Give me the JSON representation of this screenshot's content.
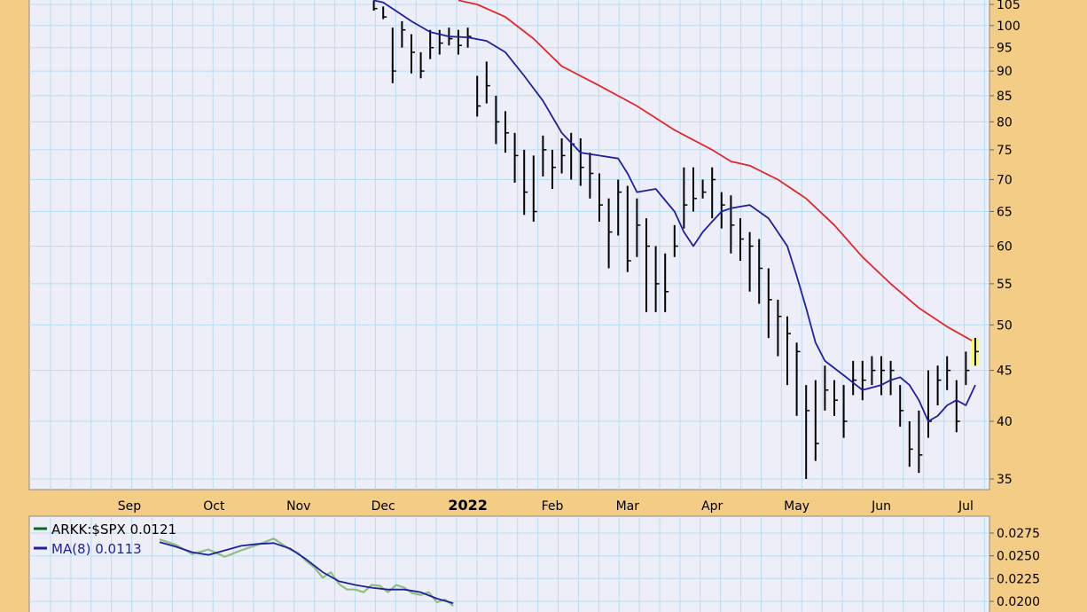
{
  "chart_data": [
    {
      "type": "line",
      "subtype": "ohlc-bars",
      "scale": "log",
      "ylim": [
        34,
        106
      ],
      "y_ticks": [
        35,
        40,
        45,
        50,
        55,
        60,
        65,
        70,
        75,
        80,
        85,
        90,
        95,
        100,
        105
      ],
      "x_ticks": [
        {
          "label": "Sep",
          "pos": 0.1,
          "bold": false
        },
        {
          "label": "Oct",
          "pos": 0.19,
          "bold": false
        },
        {
          "label": "Nov",
          "pos": 0.28,
          "bold": false
        },
        {
          "label": "Dec",
          "pos": 0.37,
          "bold": false
        },
        {
          "label": "2022",
          "pos": 0.46,
          "bold": true
        },
        {
          "label": "Feb",
          "pos": 0.55,
          "bold": false
        },
        {
          "label": "Mar",
          "pos": 0.63,
          "bold": false
        },
        {
          "label": "Apr",
          "pos": 0.72,
          "bold": false
        },
        {
          "label": "May",
          "pos": 0.81,
          "bold": false
        },
        {
          "label": "Jun",
          "pos": 0.9,
          "bold": false
        },
        {
          "label": "Jul",
          "pos": 0.99,
          "bold": false
        }
      ],
      "grid": true,
      "colors": {
        "price": "#000000",
        "ma_short": "#1f1f9f",
        "ma_long": "#e0282d",
        "last_bar_highlight": "#ffff50",
        "background": "#eeeef8",
        "grid": "#a8d8ec"
      },
      "series": [
        {
          "role": "ma_long",
          "x": [
            0.45,
            0.47,
            0.5,
            0.53,
            0.56,
            0.6,
            0.64,
            0.68,
            0.72,
            0.74,
            0.76,
            0.79,
            0.82,
            0.85,
            0.88,
            0.91,
            0.94,
            0.97,
            1.0
          ],
          "values": [
            106,
            105,
            102,
            97,
            91,
            87,
            83,
            78.5,
            75,
            73,
            72.3,
            70,
            67,
            63,
            58.5,
            55,
            52,
            49.8,
            48
          ]
        },
        {
          "role": "ma_short",
          "x": [
            0.36,
            0.37,
            0.38,
            0.4,
            0.42,
            0.44,
            0.46,
            0.48,
            0.5,
            0.52,
            0.54,
            0.56,
            0.58,
            0.6,
            0.62,
            0.63,
            0.64,
            0.66,
            0.68,
            0.69,
            0.7,
            0.71,
            0.72,
            0.73,
            0.74,
            0.76,
            0.78,
            0.8,
            0.81,
            0.82,
            0.83,
            0.84,
            0.86,
            0.88,
            0.9,
            0.91,
            0.92,
            0.93,
            0.94,
            0.95,
            0.96,
            0.97,
            0.98,
            0.99,
            1.0
          ],
          "values": [
            106,
            105.5,
            104,
            101,
            98.5,
            97.5,
            97.3,
            96.5,
            94,
            89,
            84,
            78,
            74.5,
            74,
            73.5,
            71,
            68,
            68.5,
            65,
            62,
            60,
            62,
            63.5,
            65,
            65.5,
            66,
            64,
            60,
            56,
            52,
            48,
            46,
            44.5,
            43,
            43.5,
            44,
            44.3,
            43.5,
            42,
            40,
            40.5,
            41.5,
            42,
            41.5,
            43.5
          ]
        },
        {
          "role": "price",
          "x": [
            0.36,
            0.37,
            0.38,
            0.39,
            0.4,
            0.41,
            0.42,
            0.43,
            0.44,
            0.45,
            0.46,
            0.47,
            0.48,
            0.49,
            0.5,
            0.51,
            0.52,
            0.53,
            0.54,
            0.55,
            0.56,
            0.57,
            0.58,
            0.59,
            0.6,
            0.61,
            0.62,
            0.63,
            0.64,
            0.65,
            0.66,
            0.67,
            0.68,
            0.69,
            0.7,
            0.71,
            0.72,
            0.73,
            0.74,
            0.75,
            0.76,
            0.77,
            0.78,
            0.79,
            0.8,
            0.81,
            0.82,
            0.83,
            0.84,
            0.85,
            0.86,
            0.87,
            0.88,
            0.89,
            0.9,
            0.91,
            0.92,
            0.93,
            0.94,
            0.95,
            0.96,
            0.97,
            0.98,
            0.99,
            1.0
          ],
          "values": [
            104,
            102,
            90,
            99,
            94,
            90,
            95,
            96,
            97,
            95.5,
            97.5,
            83,
            87,
            80,
            78,
            74,
            68,
            65,
            75,
            72,
            74,
            76,
            72,
            71,
            66,
            62,
            68,
            58,
            63,
            60,
            55,
            54,
            60,
            66,
            67,
            68,
            70,
            66,
            63,
            61,
            60,
            57,
            53,
            51,
            49,
            47,
            41,
            38,
            43,
            42,
            40,
            44,
            44,
            45,
            45,
            45,
            41,
            37.5,
            37,
            40,
            44,
            45,
            40,
            45,
            47
          ],
          "high": [
            106,
            104.5,
            99.5,
            101,
            98,
            94,
            99,
            99,
            99.5,
            99,
            99.5,
            89,
            92,
            85,
            82,
            78,
            75,
            74,
            77.5,
            75,
            77,
            78,
            77,
            74.5,
            71,
            67,
            70,
            69,
            67,
            64,
            60,
            59,
            63,
            72,
            72,
            70,
            72,
            68,
            67.5,
            64,
            62,
            61,
            57,
            53,
            51,
            48,
            43.5,
            44,
            45.5,
            44,
            43.5,
            46,
            46,
            46.5,
            46.5,
            46,
            43.5,
            40,
            41,
            45,
            45.5,
            46.5,
            44,
            47,
            48.5
          ],
          "low": [
            103.5,
            101.5,
            87.5,
            95,
            89.5,
            88.5,
            92.5,
            93.5,
            95.5,
            93.5,
            95,
            81,
            83.5,
            76,
            74.5,
            69.5,
            64.5,
            63.5,
            70.5,
            68.5,
            71,
            70,
            69,
            67,
            63.5,
            57,
            61.5,
            56.5,
            58.5,
            51.5,
            51.5,
            51.5,
            58.5,
            62.5,
            65,
            67,
            64,
            62.5,
            59,
            58,
            54,
            52.5,
            48.5,
            46.5,
            43.5,
            40.5,
            35,
            36.5,
            41,
            40.5,
            38.5,
            42.5,
            42,
            43.5,
            42.5,
            42.5,
            39.5,
            36,
            35.5,
            38.5,
            41.5,
            43,
            39,
            43.5,
            45.5
          ]
        }
      ]
    },
    {
      "type": "line",
      "ylim": [
        0.0195,
        0.0285
      ],
      "y_ticks": [
        0.02,
        0.0225,
        0.025,
        0.0275
      ],
      "grid": true,
      "legend_position": "top-left",
      "legend": [
        {
          "label": "ARKK:$SPX",
          "value": "0.0121",
          "color": "#0b6b1a"
        },
        {
          "label": "MA(8)",
          "value": "0.0113",
          "color": "#1f1f9f"
        }
      ],
      "series": [
        {
          "name": "ARKK:$SPX",
          "color": "#8fbf7f",
          "x": [
            0.0,
            0.02,
            0.04,
            0.06,
            0.08,
            0.1,
            0.12,
            0.14,
            0.15,
            0.16,
            0.17,
            0.18,
            0.19,
            0.2,
            0.21,
            0.22,
            0.23,
            0.24,
            0.25,
            0.26,
            0.27,
            0.28,
            0.29,
            0.3,
            0.31,
            0.32,
            0.33,
            0.34,
            0.35,
            0.36
          ],
          "values": [
            0.0268,
            0.0262,
            0.0252,
            0.0257,
            0.0249,
            0.0256,
            0.0262,
            0.0269,
            0.0263,
            0.0257,
            0.0253,
            0.0244,
            0.0237,
            0.0226,
            0.0232,
            0.0219,
            0.0213,
            0.0213,
            0.021,
            0.0218,
            0.0217,
            0.021,
            0.0218,
            0.0215,
            0.0209,
            0.0207,
            0.021,
            0.0199,
            0.0202,
            0.0195
          ]
        },
        {
          "name": "MA(8)",
          "color": "#1f1f9f",
          "x": [
            0.0,
            0.02,
            0.04,
            0.06,
            0.08,
            0.1,
            0.12,
            0.14,
            0.16,
            0.18,
            0.2,
            0.22,
            0.24,
            0.26,
            0.28,
            0.3,
            0.32,
            0.34,
            0.36
          ],
          "values": [
            0.0265,
            0.026,
            0.0254,
            0.0251,
            0.0256,
            0.0261,
            0.0263,
            0.0264,
            0.0258,
            0.0246,
            0.0232,
            0.0222,
            0.0218,
            0.0215,
            0.0213,
            0.0213,
            0.021,
            0.0203,
            0.0198
          ]
        }
      ]
    }
  ]
}
